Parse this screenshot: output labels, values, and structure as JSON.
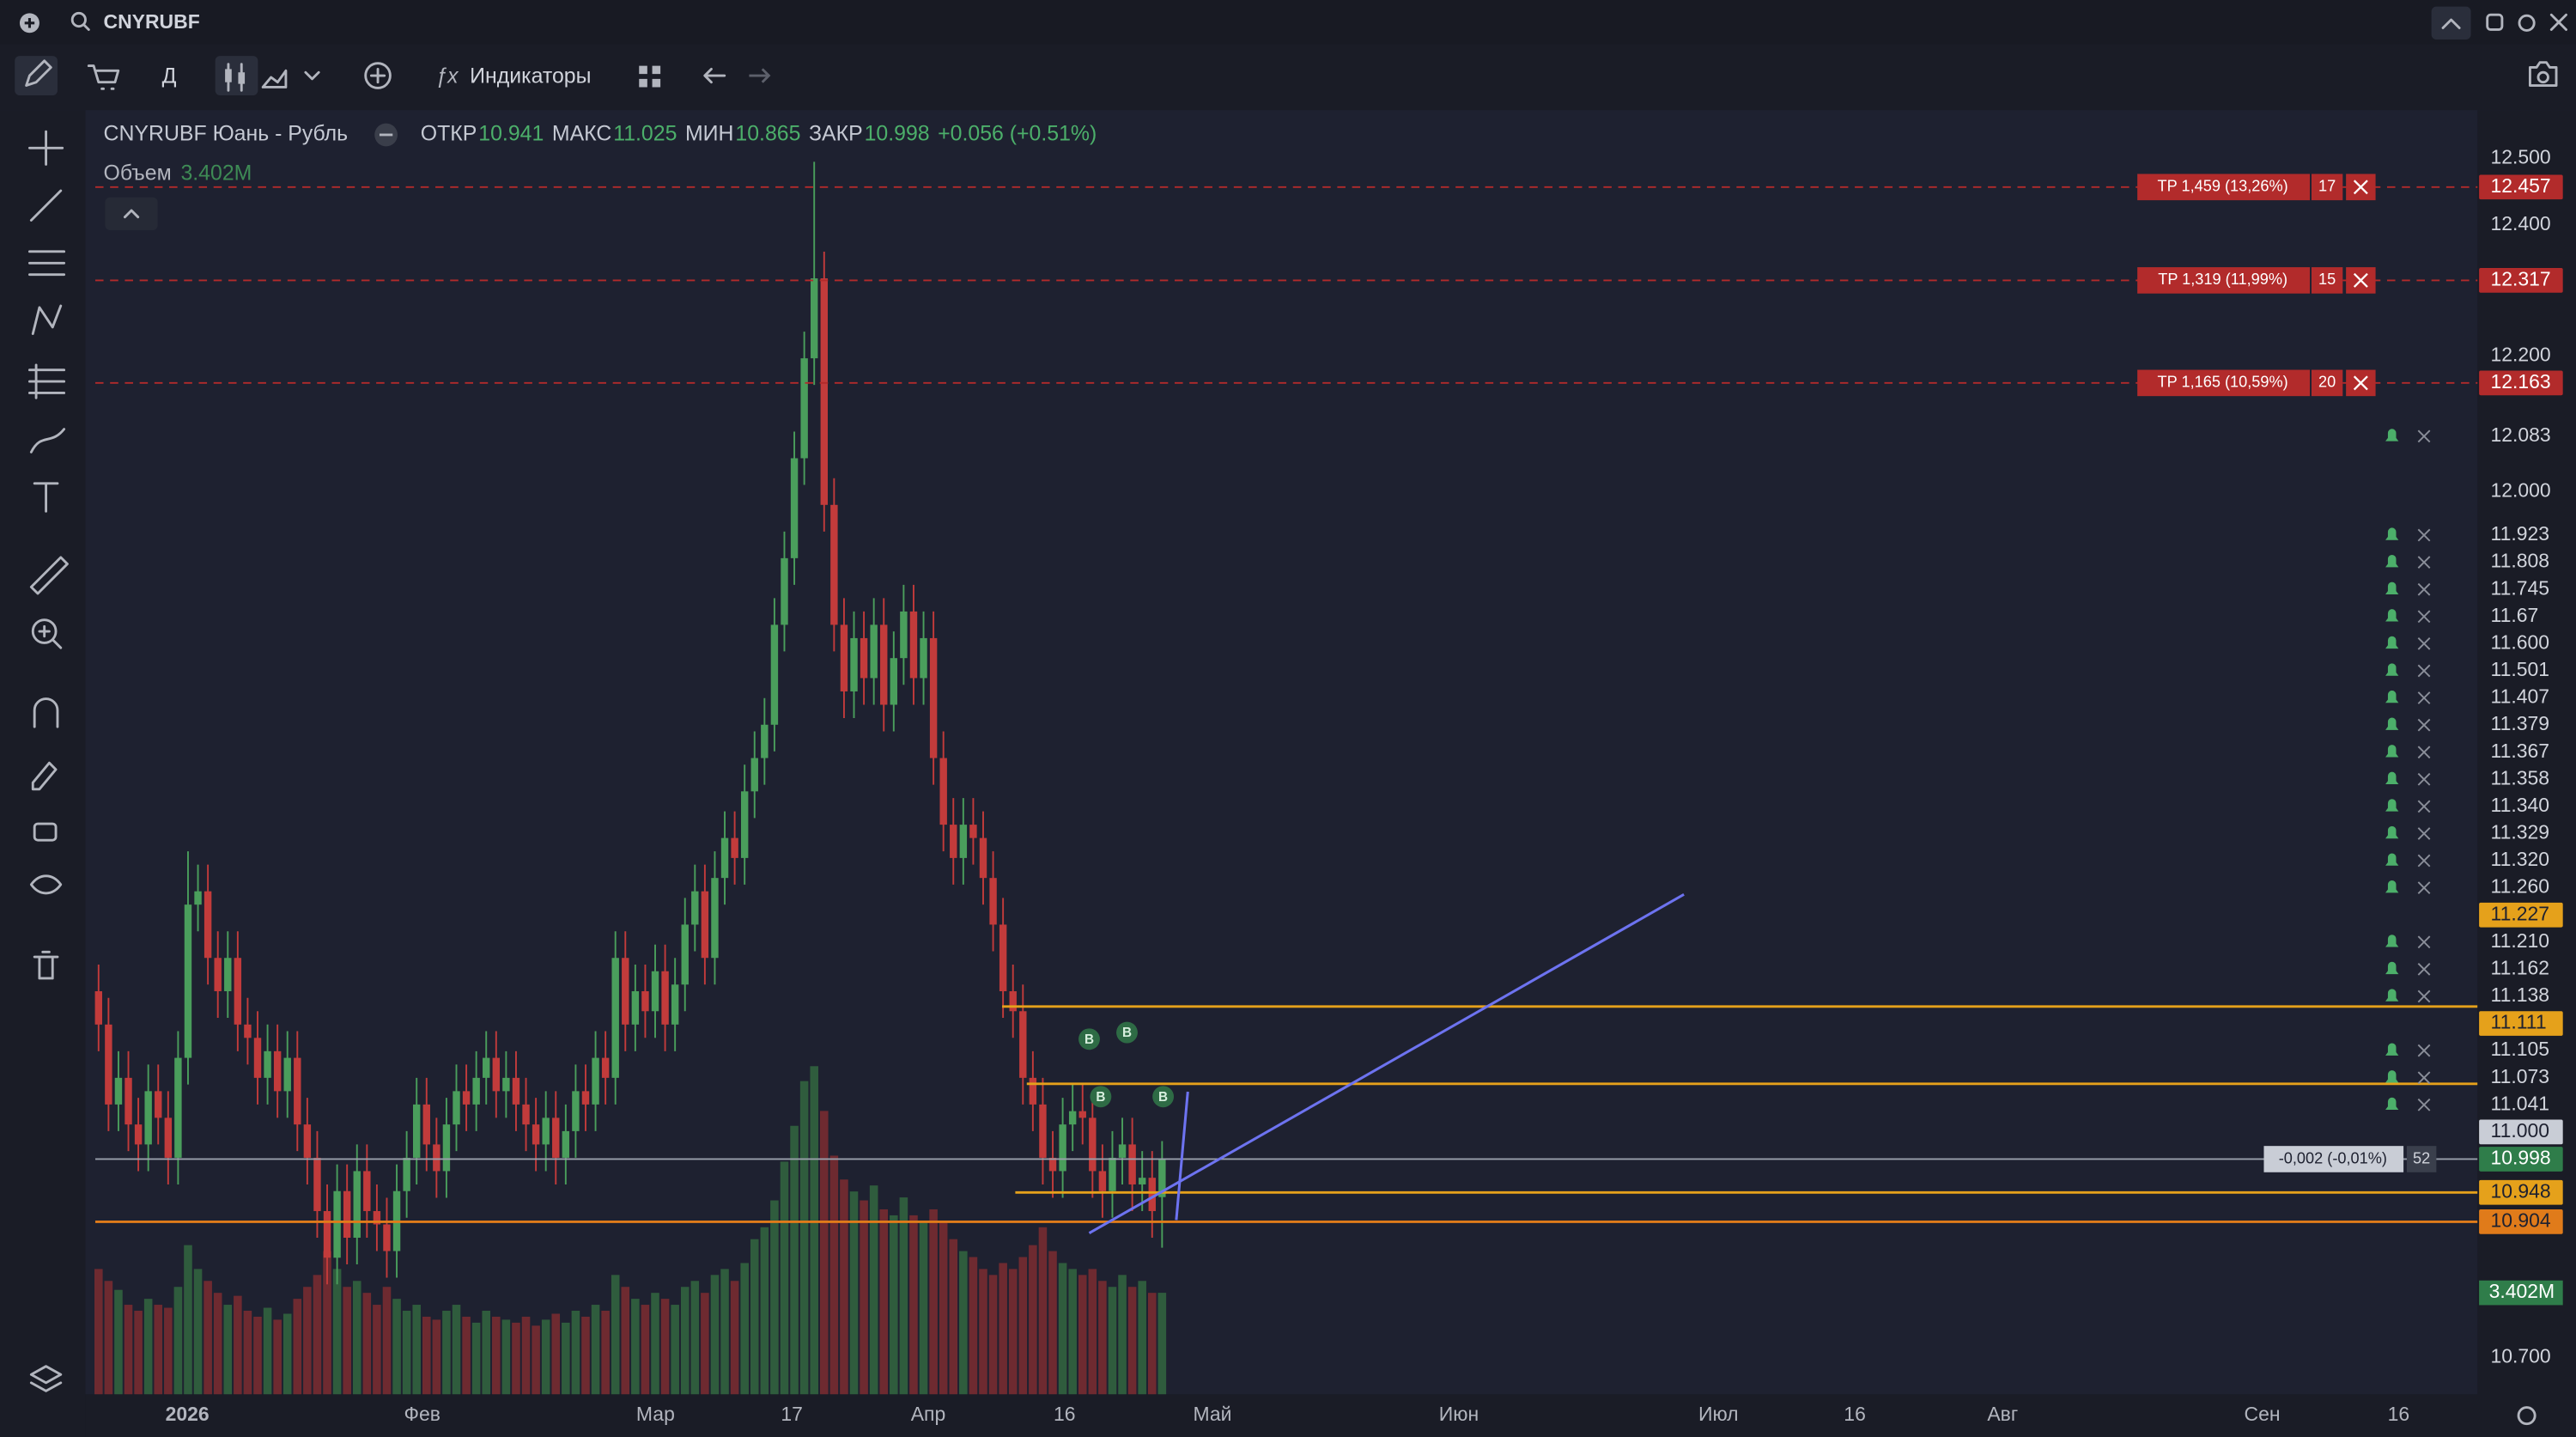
{
  "header": {
    "symbol": "CNYRUBF"
  },
  "toolbar": {
    "interval": "Д",
    "indicators": "Индикаторы"
  },
  "chart_data": {
    "type": "candlestick",
    "legend": {
      "name": "CNYRUBF Юань - Рубль",
      "open_label": "ОТКР",
      "high_label": "МАКС",
      "low_label": "МИН",
      "close_label": "ЗАКР",
      "change": "+0.056 (+0.51%)",
      "volume_title": "Объем"
    },
    "up_color": "#4a9e5c",
    "down_color": "#c23b3b",
    "volume_up_color": "#2f5c3d",
    "volume_down_color": "#6e2a30",
    "candles": {
      "open": [
        11.25,
        11.2,
        11.08,
        11.12,
        11.05,
        11.02,
        11.1,
        11.06,
        11.0,
        11.15,
        11.38,
        11.4,
        11.3,
        11.25,
        11.3,
        11.2,
        11.18,
        11.12,
        11.16,
        11.1,
        11.15,
        11.05,
        11.0,
        10.92,
        10.85,
        10.95,
        10.88,
        10.98,
        10.92,
        10.9,
        10.86,
        10.95,
        11.0,
        11.08,
        11.02,
        10.98,
        11.05,
        11.1,
        11.08,
        11.12,
        11.15,
        11.1,
        11.12,
        11.08,
        11.05,
        11.02,
        11.06,
        11.0,
        11.04,
        11.1,
        11.08,
        11.15,
        11.12,
        11.3,
        11.2,
        11.25,
        11.22,
        11.28,
        11.2,
        11.26,
        11.35,
        11.4,
        11.3,
        11.42,
        11.48,
        11.45,
        11.55,
        11.6,
        11.65,
        11.8,
        11.9,
        12.05,
        12.2,
        12.32,
        11.98,
        11.8,
        11.7,
        11.78,
        11.72,
        11.8,
        11.68,
        11.75,
        11.82,
        11.72,
        11.78,
        11.6,
        11.5,
        11.45,
        11.5,
        11.48,
        11.42,
        11.35,
        11.25,
        11.22,
        11.12,
        11.08,
        11.0,
        10.98,
        11.05,
        11.07,
        11.06,
        10.98,
        10.95,
        11.0,
        11.02,
        10.96,
        10.97,
        10.941
      ],
      "high": [
        11.29,
        11.24,
        11.16,
        11.16,
        11.09,
        11.14,
        11.14,
        11.1,
        11.19,
        11.46,
        11.44,
        11.44,
        11.34,
        11.34,
        11.34,
        11.24,
        11.22,
        11.2,
        11.2,
        11.19,
        11.19,
        11.09,
        11.04,
        10.96,
        10.99,
        10.99,
        11.02,
        11.02,
        10.96,
        10.94,
        10.99,
        11.04,
        11.12,
        11.12,
        11.06,
        11.09,
        11.14,
        11.14,
        11.16,
        11.19,
        11.19,
        11.16,
        11.16,
        11.12,
        11.09,
        11.1,
        11.1,
        11.08,
        11.14,
        11.14,
        11.19,
        11.19,
        11.34,
        11.34,
        11.29,
        11.29,
        11.32,
        11.32,
        11.3,
        11.39,
        11.44,
        11.44,
        11.46,
        11.52,
        11.52,
        11.59,
        11.64,
        11.69,
        11.84,
        11.94,
        12.09,
        12.24,
        12.495,
        12.36,
        12.02,
        11.84,
        11.82,
        11.82,
        11.84,
        11.84,
        11.79,
        11.86,
        11.86,
        11.82,
        11.82,
        11.64,
        11.54,
        11.54,
        11.54,
        11.52,
        11.46,
        11.39,
        11.29,
        11.26,
        11.16,
        11.12,
        11.04,
        11.09,
        11.11,
        11.11,
        11.1,
        11.02,
        11.04,
        11.06,
        11.06,
        11.01,
        11.01,
        11.025
      ],
      "low": [
        11.16,
        11.04,
        11.04,
        11.01,
        10.98,
        10.98,
        11.02,
        10.96,
        10.96,
        11.11,
        11.34,
        11.26,
        11.21,
        11.21,
        11.16,
        11.14,
        11.08,
        11.08,
        11.06,
        11.06,
        11.01,
        10.96,
        10.88,
        10.81,
        10.81,
        10.84,
        10.84,
        10.88,
        10.86,
        10.82,
        10.82,
        10.91,
        10.96,
        10.98,
        10.94,
        10.94,
        11.01,
        11.04,
        11.04,
        11.08,
        11.06,
        11.06,
        11.04,
        11.01,
        10.98,
        10.98,
        10.96,
        10.96,
        11.0,
        11.04,
        11.04,
        11.08,
        11.08,
        11.16,
        11.16,
        11.18,
        11.18,
        11.16,
        11.16,
        11.22,
        11.31,
        11.26,
        11.26,
        11.38,
        11.41,
        11.41,
        11.51,
        11.56,
        11.61,
        11.76,
        11.86,
        12.01,
        12.16,
        11.94,
        11.76,
        11.66,
        11.66,
        11.68,
        11.68,
        11.64,
        11.64,
        11.71,
        11.68,
        11.68,
        11.56,
        11.46,
        11.41,
        11.41,
        11.44,
        11.38,
        11.31,
        11.21,
        11.18,
        11.08,
        11.04,
        10.96,
        10.94,
        10.94,
        11.01,
        11.02,
        10.94,
        10.91,
        10.91,
        10.96,
        10.92,
        10.92,
        10.88,
        10.865
      ],
      "close": [
        11.2,
        11.08,
        11.12,
        11.05,
        11.02,
        11.1,
        11.06,
        11.0,
        11.15,
        11.38,
        11.4,
        11.3,
        11.25,
        11.3,
        11.2,
        11.18,
        11.12,
        11.16,
        11.1,
        11.15,
        11.05,
        11.0,
        10.92,
        10.85,
        10.95,
        10.88,
        10.98,
        10.92,
        10.9,
        10.86,
        10.95,
        11.0,
        11.08,
        11.02,
        10.98,
        11.05,
        11.1,
        11.08,
        11.12,
        11.15,
        11.1,
        11.12,
        11.08,
        11.05,
        11.02,
        11.06,
        11.0,
        11.04,
        11.1,
        11.08,
        11.15,
        11.12,
        11.3,
        11.2,
        11.25,
        11.22,
        11.28,
        11.2,
        11.26,
        11.35,
        11.4,
        11.3,
        11.42,
        11.48,
        11.45,
        11.55,
        11.6,
        11.65,
        11.8,
        11.9,
        12.05,
        12.2,
        12.32,
        11.98,
        11.8,
        11.7,
        11.78,
        11.72,
        11.8,
        11.68,
        11.75,
        11.82,
        11.72,
        11.78,
        11.6,
        11.5,
        11.45,
        11.5,
        11.48,
        11.42,
        11.35,
        11.25,
        11.22,
        11.12,
        11.08,
        11.0,
        10.98,
        11.05,
        11.07,
        11.06,
        10.98,
        10.95,
        11.0,
        11.02,
        10.96,
        10.97,
        10.92,
        10.998
      ],
      "volume": [
        4.2,
        3.8,
        3.5,
        3.0,
        2.8,
        3.2,
        3.0,
        2.9,
        3.6,
        5.0,
        4.2,
        3.8,
        3.4,
        3.0,
        3.3,
        2.8,
        2.6,
        2.9,
        2.5,
        2.7,
        3.2,
        3.6,
        4.0,
        4.8,
        4.2,
        3.6,
        3.8,
        3.4,
        3.0,
        3.6,
        3.2,
        2.8,
        3.0,
        2.6,
        2.5,
        2.8,
        3.0,
        2.6,
        2.4,
        2.8,
        2.6,
        2.5,
        2.4,
        2.6,
        2.3,
        2.5,
        2.7,
        2.4,
        2.8,
        2.6,
        3.0,
        2.8,
        4.0,
        3.6,
        3.2,
        3.0,
        3.4,
        3.2,
        3.0,
        3.6,
        3.8,
        3.4,
        4.0,
        4.2,
        3.8,
        4.4,
        5.2,
        5.6,
        6.5,
        7.8,
        9.0,
        10.5,
        11.0,
        9.5,
        8.0,
        7.2,
        6.8,
        6.5,
        7.0,
        6.2,
        6.0,
        6.6,
        6.0,
        5.8,
        6.2,
        5.8,
        5.2,
        4.8,
        4.6,
        4.2,
        4.0,
        4.4,
        4.2,
        4.6,
        5.0,
        5.6,
        4.8,
        4.4,
        4.2,
        4.0,
        4.2,
        3.8,
        3.6,
        4.0,
        3.6,
        3.8,
        3.4,
        3.402
      ],
      "volume_label": "3.402M"
    },
    "ylim": [
      10.65,
      12.57
    ],
    "y2lim": [
      0,
      43
    ],
    "yticks": [
      {
        "value": 12.5,
        "label": "12.500"
      },
      {
        "value": 12.4,
        "label": "12.400"
      },
      {
        "value": 12.2,
        "label": "12.200"
      },
      {
        "value": 12.0,
        "label": "12.000"
      },
      {
        "value": 10.7,
        "label": "10.700"
      }
    ],
    "take_profits": [
      {
        "value": 12.457,
        "text": "TP 1,459 (13,26%)",
        "qty": 17
      },
      {
        "value": 12.317,
        "text": "TP 1,319 (11,99%)",
        "qty": 15
      },
      {
        "value": 12.163,
        "text": "TP 1,165 (10,59%)",
        "qty": 20
      }
    ],
    "tp_color": "#b22b2b",
    "alerts": [
      12.083,
      11.923,
      11.808,
      11.745,
      11.67,
      {
        "value": 11.6,
        "label": "11.600"
      },
      11.501,
      11.407,
      11.379,
      11.367,
      11.358,
      {
        "value": 11.34,
        "label": "11.340"
      },
      11.329,
      {
        "value": 11.32,
        "label": "11.320"
      },
      {
        "value": 11.26,
        "label": "11.260"
      },
      {
        "value": 11.21,
        "label": "11.210"
      },
      11.162,
      11.138,
      11.105,
      11.073,
      11.041
    ],
    "order_lines": [
      {
        "value": 11.227,
        "color": "#e5a11b"
      },
      {
        "value": 11.111,
        "color": "#e5a11b"
      },
      {
        "value": 10.948,
        "color": "#e5a11b"
      },
      {
        "value": 10.904,
        "color": "#e07b1a"
      }
    ],
    "level": {
      "value": 11,
      "label": "11.000"
    },
    "last_price": {
      "change": "-0,002 (-0,01%)",
      "count": 52,
      "color": "#2f7d4a"
    },
    "trade_marker": "B",
    "x_labels": [
      "2026",
      "Фев",
      "Мар",
      "17",
      "Апр",
      "16",
      "Май",
      "Июн",
      "Июл",
      "16",
      "Авг",
      "Сен",
      "16"
    ]
  }
}
